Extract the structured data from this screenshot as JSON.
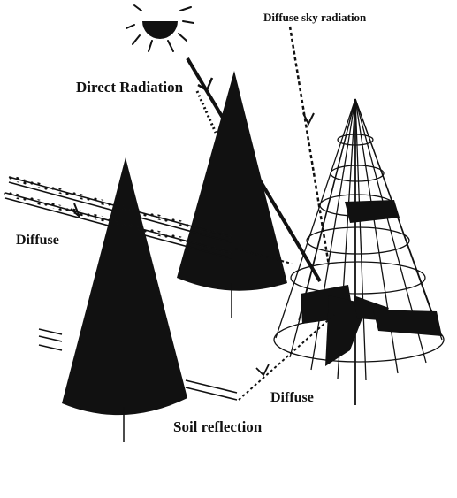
{
  "labels": {
    "diffuse_sky": "Diffuse sky radiation",
    "direct": "Direct Radiation",
    "diffuse_left": "Diffuse",
    "diffuse_bottom": "Diffuse",
    "soil": "Soil reflection"
  },
  "colors": {
    "ink": "#111111",
    "background": "#ffffff"
  },
  "icons": {
    "sun": "sun-icon"
  }
}
